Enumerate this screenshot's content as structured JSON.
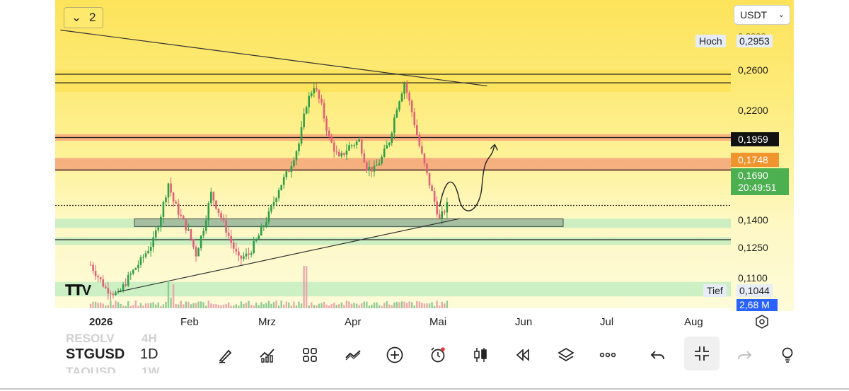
{
  "toolbar_top": {
    "collapse_count": "2",
    "currency": "USDT"
  },
  "price_axis": {
    "labels": [
      "0,2600",
      "0,2200",
      "0,1400",
      "0,1250",
      "0,1100"
    ],
    "high_label": "Hoch",
    "high_value": "0,2953",
    "top_partial": "0,2900",
    "low_label": "Tief",
    "low_value": "0,1044",
    "badge_a": "0,1959",
    "badge_b": "0,1748",
    "last_price": "0,1690",
    "countdown": "20:49:51",
    "volume": "2,68 M",
    "colors": {
      "badge_a": "#111111",
      "badge_b": "#f0942d",
      "last": "#4caf50",
      "volume": "#2962ff"
    }
  },
  "time_axis": [
    "2026",
    "Feb",
    "Mrz",
    "Apr",
    "Mai",
    "Jun",
    "Jul",
    "Aug"
  ],
  "bottom_bar": {
    "symbol": "STGUSD",
    "interval": "1D",
    "ghost_symbol_top": "RESOLV",
    "ghost_interval_top": "4H",
    "ghost_symbol_bottom": "TAOUSD",
    "ghost_interval_bottom": "1W",
    "tools": [
      "brush-icon",
      "indicators-icon",
      "templates-icon",
      "trend-line-icon",
      "add-icon",
      "alert-icon",
      "candles-icon",
      "replay-icon",
      "layers-icon",
      "more-icon",
      "undo-icon",
      "collapse-icon",
      "redo-icon",
      "idea-icon"
    ]
  },
  "chart_data": {
    "type": "candlestick",
    "symbol": "STGUSD",
    "interval": "1D",
    "x_range": [
      "2026-01",
      "2026-08"
    ],
    "y_range": [
      0.098,
      0.305
    ],
    "colors": {
      "up": "#2e9e47",
      "down": "#e06077"
    },
    "close_path": [
      [
        "2026-01-01",
        0.124
      ],
      [
        "2026-01-07",
        0.106
      ],
      [
        "2026-01-12",
        0.101
      ],
      [
        "2026-01-16",
        0.114
      ],
      [
        "2026-01-21",
        0.127
      ],
      [
        "2026-01-26",
        0.142
      ],
      [
        "2026-01-29",
        0.162
      ],
      [
        "2026-02-01",
        0.186
      ],
      [
        "2026-02-03",
        0.172
      ],
      [
        "2026-02-06",
        0.16
      ],
      [
        "2026-02-09",
        0.149
      ],
      [
        "2026-02-12",
        0.132
      ],
      [
        "2026-02-15",
        0.152
      ],
      [
        "2026-02-18",
        0.178
      ],
      [
        "2026-02-22",
        0.16
      ],
      [
        "2026-02-26",
        0.141
      ],
      [
        "2026-03-01",
        0.128
      ],
      [
        "2026-03-05",
        0.132
      ],
      [
        "2026-03-09",
        0.146
      ],
      [
        "2026-03-13",
        0.162
      ],
      [
        "2026-03-17",
        0.182
      ],
      [
        "2026-03-21",
        0.196
      ],
      [
        "2026-03-25",
        0.216
      ],
      [
        "2026-03-28",
        0.246
      ],
      [
        "2026-03-31",
        0.26
      ],
      [
        "2026-04-03",
        0.244
      ],
      [
        "2026-04-06",
        0.22
      ],
      [
        "2026-04-10",
        0.204
      ],
      [
        "2026-04-14",
        0.214
      ],
      [
        "2026-04-18",
        0.218
      ],
      [
        "2026-04-21",
        0.198
      ],
      [
        "2026-04-24",
        0.196
      ],
      [
        "2026-04-27",
        0.205
      ],
      [
        "2026-04-30",
        0.218
      ],
      [
        "2026-05-03",
        0.244
      ],
      [
        "2026-05-06",
        0.262
      ],
      [
        "2026-05-09",
        0.24
      ],
      [
        "2026-05-12",
        0.214
      ],
      [
        "2026-05-15",
        0.192
      ],
      [
        "2026-05-18",
        0.172
      ],
      [
        "2026-05-20",
        0.158
      ],
      [
        "2026-05-23",
        0.169
      ]
    ],
    "horizontal_levels": [
      0.2685,
      0.262,
      0.2205,
      0.1959,
      0.169,
      0.143
    ],
    "zones": [
      {
        "from": 0.255,
        "to": 0.272,
        "color": "#fde35a"
      },
      {
        "from": 0.218,
        "to": 0.223,
        "color": "#f6a77a"
      },
      {
        "from": 0.195,
        "to": 0.205,
        "color": "#f4a47a"
      },
      {
        "from": 0.152,
        "to": 0.159,
        "color": "#c3ecc0"
      },
      {
        "from": 0.139,
        "to": 0.145,
        "color": "#c3ecc0"
      },
      {
        "from": 0.1,
        "to": 0.111,
        "color": "#c3ecc0"
      }
    ],
    "trendlines": [
      {
        "from": [
          "2025-12-20",
          0.302
        ],
        "to": [
          "2026-06-08",
          0.2596
        ]
      },
      {
        "from": [
          "2026-01-12",
          0.1035
        ],
        "to": [
          "2026-05-28",
          0.159
        ]
      }
    ],
    "volume_series": "small bars at the bottom, with spikes in early February and late March"
  }
}
